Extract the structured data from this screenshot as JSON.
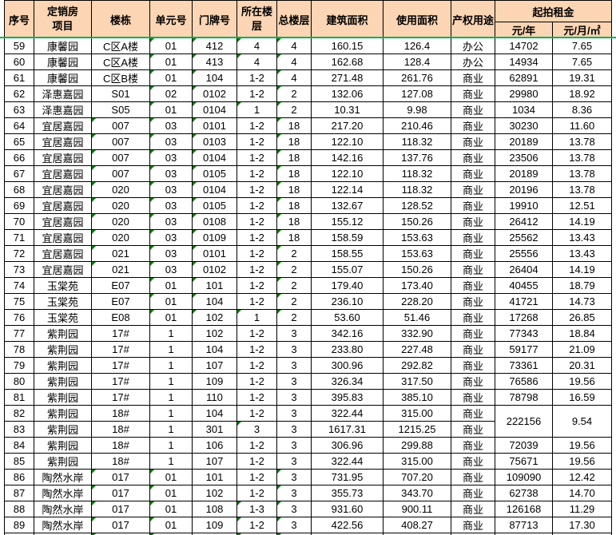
{
  "table": {
    "headers": {
      "index": "序号",
      "project": "定销房项目",
      "building": "楼栋",
      "unit": "单元号",
      "door": "门牌号",
      "floor": "所在楼层",
      "total": "总楼层",
      "built": "建筑面积",
      "usable": "使用面积",
      "use": "产权用途",
      "rent_group": "起拍租金",
      "rent_year": "元/年",
      "rent_m2": "元/月/㎡"
    },
    "rows": [
      {
        "index": "59",
        "project": "康馨园",
        "building": "C区A楼",
        "unit": "01",
        "door": "412",
        "floor": "4",
        "total": "4",
        "built": "160.15",
        "usable": "126.4",
        "use": "办公",
        "rent_year": "14702",
        "rent_m2": "7.65",
        "flags": [
          "unit",
          "door",
          "floor",
          "total"
        ]
      },
      {
        "index": "60",
        "project": "康馨园",
        "building": "C区A楼",
        "unit": "01",
        "door": "413",
        "floor": "4",
        "total": "4",
        "built": "162.68",
        "usable": "128.4",
        "use": "办公",
        "rent_year": "14934",
        "rent_m2": "7.65",
        "flags": [
          "unit",
          "door",
          "floor",
          "total"
        ]
      },
      {
        "index": "61",
        "project": "康馨园",
        "building": "C区B楼",
        "unit": "01",
        "door": "104",
        "floor": "1-2",
        "total": "4",
        "built": "271.48",
        "usable": "261.76",
        "use": "商业",
        "rent_year": "62891",
        "rent_m2": "19.31",
        "flags": [
          "unit",
          "door",
          "total"
        ]
      },
      {
        "index": "62",
        "project": "泽惠嘉园",
        "building": "S01",
        "unit": "02",
        "door": "0102",
        "floor": "1-2",
        "total": "2",
        "built": "132.06",
        "usable": "127.08",
        "use": "商业",
        "rent_year": "29980",
        "rent_m2": "18.92",
        "flags": [
          "unit",
          "door",
          "total"
        ]
      },
      {
        "index": "63",
        "project": "泽惠嘉园",
        "building": "S05",
        "unit": "01",
        "door": "0104",
        "floor": "1",
        "total": "2",
        "built": "10.31",
        "usable": "9.98",
        "use": "商业",
        "rent_year": "1034",
        "rent_m2": "8.36",
        "flags": [
          "unit",
          "door",
          "floor",
          "total"
        ]
      },
      {
        "index": "64",
        "project": "宜居嘉园",
        "building": "007",
        "unit": "03",
        "door": "0101",
        "floor": "1-2",
        "total": "18",
        "built": "217.20",
        "usable": "210.46",
        "use": "商业",
        "rent_year": "30230",
        "rent_m2": "11.60",
        "flags": [
          "building",
          "unit",
          "door",
          "total"
        ]
      },
      {
        "index": "65",
        "project": "宜居嘉园",
        "building": "007",
        "unit": "03",
        "door": "0103",
        "floor": "1-2",
        "total": "18",
        "built": "122.10",
        "usable": "118.32",
        "use": "商业",
        "rent_year": "20189",
        "rent_m2": "13.78",
        "flags": [
          "building",
          "unit",
          "door",
          "total"
        ]
      },
      {
        "index": "66",
        "project": "宜居嘉园",
        "building": "007",
        "unit": "03",
        "door": "0104",
        "floor": "1-2",
        "total": "18",
        "built": "142.16",
        "usable": "137.76",
        "use": "商业",
        "rent_year": "23506",
        "rent_m2": "13.78",
        "flags": [
          "building",
          "unit",
          "door",
          "total"
        ]
      },
      {
        "index": "67",
        "project": "宜居嘉园",
        "building": "007",
        "unit": "03",
        "door": "0105",
        "floor": "1-2",
        "total": "18",
        "built": "122.10",
        "usable": "118.32",
        "use": "商业",
        "rent_year": "20189",
        "rent_m2": "13.78",
        "flags": [
          "building",
          "unit",
          "door",
          "total"
        ]
      },
      {
        "index": "68",
        "project": "宜居嘉园",
        "building": "020",
        "unit": "03",
        "door": "0104",
        "floor": "1-2",
        "total": "18",
        "built": "122.14",
        "usable": "118.32",
        "use": "商业",
        "rent_year": "20196",
        "rent_m2": "13.78",
        "flags": [
          "building",
          "unit",
          "door",
          "total"
        ]
      },
      {
        "index": "69",
        "project": "宜居嘉园",
        "building": "020",
        "unit": "03",
        "door": "0105",
        "floor": "1-2",
        "total": "18",
        "built": "132.67",
        "usable": "128.52",
        "use": "商业",
        "rent_year": "19910",
        "rent_m2": "12.51",
        "flags": [
          "building",
          "unit",
          "door",
          "total"
        ]
      },
      {
        "index": "70",
        "project": "宜居嘉园",
        "building": "020",
        "unit": "03",
        "door": "0108",
        "floor": "1-2",
        "total": "18",
        "built": "155.12",
        "usable": "150.26",
        "use": "商业",
        "rent_year": "26412",
        "rent_m2": "14.19",
        "flags": [
          "building",
          "unit",
          "door",
          "total"
        ]
      },
      {
        "index": "71",
        "project": "宜居嘉园",
        "building": "020",
        "unit": "03",
        "door": "0109",
        "floor": "1-2",
        "total": "18",
        "built": "158.59",
        "usable": "153.63",
        "use": "商业",
        "rent_year": "25562",
        "rent_m2": "13.43",
        "flags": [
          "building",
          "unit",
          "door",
          "total"
        ]
      },
      {
        "index": "72",
        "project": "宜居嘉园",
        "building": "021",
        "unit": "03",
        "door": "0101",
        "floor": "1-2",
        "total": "2",
        "built": "158.55",
        "usable": "153.63",
        "use": "商业",
        "rent_year": "25556",
        "rent_m2": "13.43",
        "flags": [
          "building",
          "unit",
          "door",
          "total"
        ]
      },
      {
        "index": "73",
        "project": "宜居嘉园",
        "building": "021",
        "unit": "03",
        "door": "0102",
        "floor": "1-2",
        "total": "2",
        "built": "155.07",
        "usable": "150.26",
        "use": "商业",
        "rent_year": "26404",
        "rent_m2": "14.19",
        "flags": [
          "building",
          "unit",
          "door",
          "total"
        ]
      },
      {
        "index": "74",
        "project": "玉棠苑",
        "building": "E07",
        "unit": "01",
        "door": "101",
        "floor": "1-2",
        "total": "2",
        "built": "179.40",
        "usable": "173.40",
        "use": "商业",
        "rent_year": "40455",
        "rent_m2": "18.79",
        "flags": [
          "unit",
          "door",
          "total"
        ]
      },
      {
        "index": "75",
        "project": "玉棠苑",
        "building": "E07",
        "unit": "01",
        "door": "104",
        "floor": "1-2",
        "total": "2",
        "built": "236.10",
        "usable": "228.20",
        "use": "商业",
        "rent_year": "41721",
        "rent_m2": "14.73",
        "flags": [
          "unit",
          "door",
          "total"
        ]
      },
      {
        "index": "76",
        "project": "玉棠苑",
        "building": "E08",
        "unit": "01",
        "door": "102",
        "floor": "1",
        "total": "2",
        "built": "53.60",
        "usable": "51.46",
        "use": "商业",
        "rent_year": "17268",
        "rent_m2": "26.85",
        "flags": [
          "unit",
          "door",
          "floor",
          "total"
        ]
      },
      {
        "index": "77",
        "project": "紫荆园",
        "building": "17#",
        "unit": "1",
        "door": "102",
        "floor": "1-2",
        "total": "3",
        "built": "342.16",
        "usable": "332.90",
        "use": "商业",
        "rent_year": "77343",
        "rent_m2": "18.84",
        "flags": []
      },
      {
        "index": "78",
        "project": "紫荆园",
        "building": "17#",
        "unit": "1",
        "door": "104",
        "floor": "1-2",
        "total": "3",
        "built": "233.80",
        "usable": "227.48",
        "use": "商业",
        "rent_year": "59177",
        "rent_m2": "21.09",
        "flags": []
      },
      {
        "index": "79",
        "project": "紫荆园",
        "building": "17#",
        "unit": "1",
        "door": "107",
        "floor": "1-2",
        "total": "3",
        "built": "300.96",
        "usable": "292.82",
        "use": "商业",
        "rent_year": "73361",
        "rent_m2": "20.31",
        "flags": []
      },
      {
        "index": "80",
        "project": "紫荆园",
        "building": "17#",
        "unit": "1",
        "door": "109",
        "floor": "1-2",
        "total": "3",
        "built": "326.34",
        "usable": "317.50",
        "use": "商业",
        "rent_year": "76586",
        "rent_m2": "19.56",
        "flags": []
      },
      {
        "index": "81",
        "project": "紫荆园",
        "building": "17#",
        "unit": "1",
        "door": "110",
        "floor": "1-2",
        "total": "3",
        "built": "395.83",
        "usable": "385.10",
        "use": "商业",
        "rent_year": "78798",
        "rent_m2": "16.59",
        "flags": []
      },
      {
        "index": "82",
        "project": "紫荆园",
        "building": "18#",
        "unit": "1",
        "door": "104",
        "floor": "1-2",
        "total": "3",
        "built": "322.44",
        "usable": "315.00",
        "use": "商业",
        "rent_year": "222156",
        "rent_m2": "9.54",
        "flags": [],
        "rent_rowspan": 2
      },
      {
        "index": "83",
        "project": "紫荆园",
        "building": "18#",
        "unit": "1",
        "door": "301",
        "floor": "3",
        "total": "3",
        "built": "1617.31",
        "usable": "1215.25",
        "use": "商业",
        "rent_year": "",
        "rent_m2": "",
        "flags": [
          "floor"
        ],
        "rent_merged": true
      },
      {
        "index": "84",
        "project": "紫荆园",
        "building": "18#",
        "unit": "1",
        "door": "106",
        "floor": "1-2",
        "total": "3",
        "built": "306.96",
        "usable": "299.88",
        "use": "商业",
        "rent_year": "72039",
        "rent_m2": "19.56",
        "flags": []
      },
      {
        "index": "85",
        "project": "紫荆园",
        "building": "18#",
        "unit": "1",
        "door": "107",
        "floor": "1-2",
        "total": "3",
        "built": "322.44",
        "usable": "315.00",
        "use": "商业",
        "rent_year": "75671",
        "rent_m2": "19.56",
        "flags": []
      },
      {
        "index": "86",
        "project": "陶然水岸",
        "building": "017",
        "unit": "01",
        "door": "101",
        "floor": "1-2",
        "total": "3",
        "built": "731.95",
        "usable": "707.20",
        "use": "商业",
        "rent_year": "109090",
        "rent_m2": "12.42",
        "flags": [
          "building",
          "unit",
          "total"
        ]
      },
      {
        "index": "87",
        "project": "陶然水岸",
        "building": "017",
        "unit": "01",
        "door": "102",
        "floor": "1-2",
        "total": "3",
        "built": "355.73",
        "usable": "343.70",
        "use": "商业",
        "rent_year": "62738",
        "rent_m2": "14.70",
        "flags": [
          "building",
          "unit",
          "total"
        ]
      },
      {
        "index": "88",
        "project": "陶然水岸",
        "building": "017",
        "unit": "01",
        "door": "108",
        "floor": "1-3",
        "total": "3",
        "built": "931.60",
        "usable": "900.11",
        "use": "商业",
        "rent_year": "126168",
        "rent_m2": "11.29",
        "flags": [
          "building",
          "unit",
          "floor",
          "total"
        ]
      },
      {
        "index": "89",
        "project": "陶然水岸",
        "building": "017",
        "unit": "01",
        "door": "109",
        "floor": "1-2",
        "total": "3",
        "built": "422.56",
        "usable": "408.27",
        "use": "商业",
        "rent_year": "87713",
        "rent_m2": "17.30",
        "flags": [
          "building",
          "unit",
          "floor",
          "total"
        ]
      }
    ],
    "partial_row_flags": [
      "building",
      "unit",
      "floor",
      "total"
    ],
    "colors": {
      "header_bg": "#fcd5b4",
      "grid": "#000000",
      "freeze_line": "#00b050",
      "triangle": "#008000"
    }
  }
}
